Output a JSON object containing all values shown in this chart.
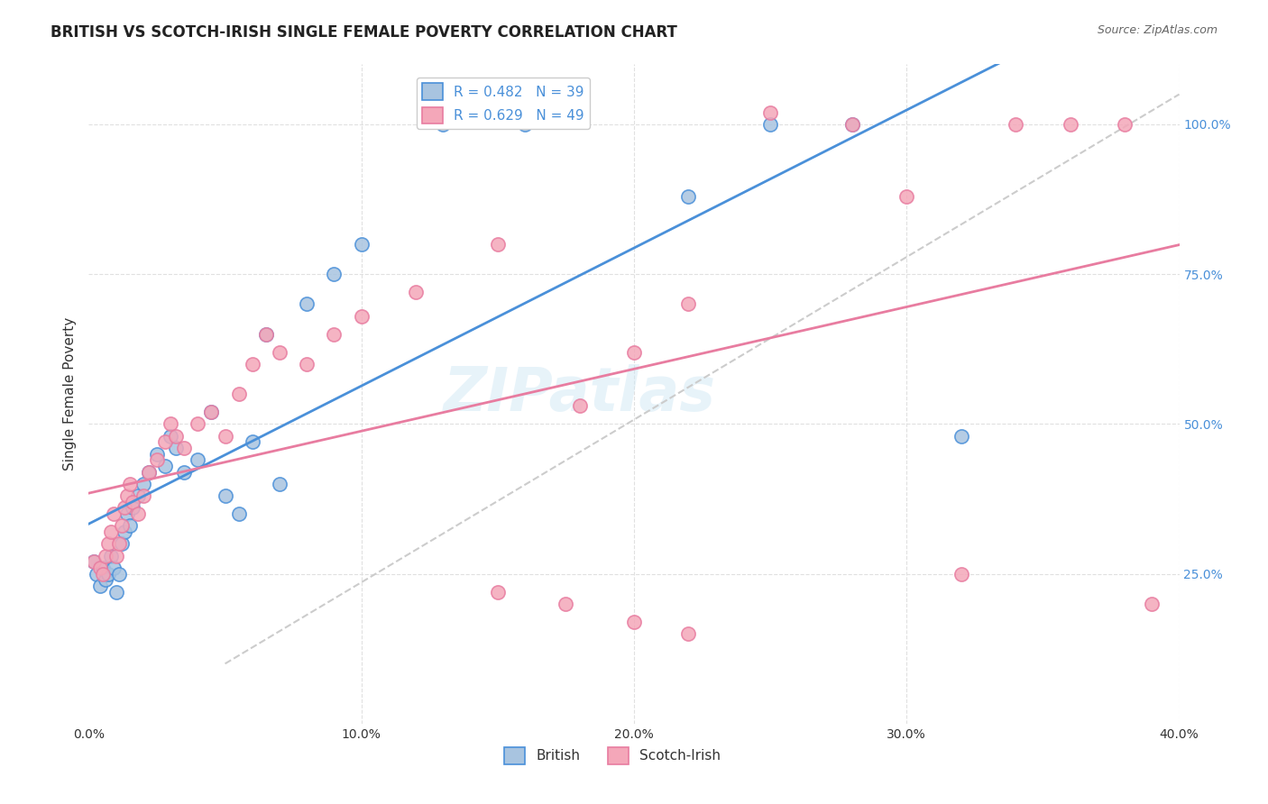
{
  "title": "BRITISH VS SCOTCH-IRISH SINGLE FEMALE POVERTY CORRELATION CHART",
  "source": "Source: ZipAtlas.com",
  "xlabel": "",
  "ylabel": "Single Female Poverty",
  "xlim": [
    0.0,
    0.4
  ],
  "ylim": [
    0.0,
    1.1
  ],
  "xticks": [
    0.0,
    0.1,
    0.2,
    0.3,
    0.4
  ],
  "xtick_labels": [
    "0.0%",
    "10.0%",
    "20.0%",
    "30.0%",
    "40.0%"
  ],
  "yticks_right": [
    0.25,
    0.5,
    0.75,
    1.0
  ],
  "ytick_labels_right": [
    "25.0%",
    "50.0%",
    "75.0%",
    "100.0%"
  ],
  "british_R": 0.482,
  "british_N": 39,
  "scotchirish_R": 0.629,
  "scotchirish_N": 49,
  "british_color": "#a8c4e0",
  "scotchirish_color": "#f4a7b9",
  "british_line_color": "#4a90d9",
  "scotchirish_line_color": "#e87ca0",
  "diagonal_color": "#cccccc",
  "background_color": "#ffffff",
  "grid_color": "#e0e0e0",
  "watermark": "ZIPatlas",
  "british_x": [
    0.002,
    0.003,
    0.004,
    0.005,
    0.006,
    0.007,
    0.008,
    0.009,
    0.01,
    0.011,
    0.012,
    0.013,
    0.014,
    0.015,
    0.016,
    0.018,
    0.02,
    0.022,
    0.025,
    0.028,
    0.03,
    0.032,
    0.035,
    0.04,
    0.045,
    0.05,
    0.055,
    0.06,
    0.065,
    0.07,
    0.08,
    0.09,
    0.1,
    0.13,
    0.16,
    0.22,
    0.25,
    0.28,
    0.32
  ],
  "british_y": [
    0.27,
    0.25,
    0.23,
    0.26,
    0.24,
    0.25,
    0.28,
    0.26,
    0.22,
    0.25,
    0.3,
    0.32,
    0.35,
    0.33,
    0.36,
    0.38,
    0.4,
    0.42,
    0.45,
    0.43,
    0.48,
    0.46,
    0.42,
    0.44,
    0.52,
    0.38,
    0.35,
    0.47,
    0.65,
    0.4,
    0.7,
    0.75,
    0.8,
    1.0,
    1.0,
    0.88,
    1.0,
    1.0,
    0.48
  ],
  "scotchirish_x": [
    0.002,
    0.004,
    0.005,
    0.006,
    0.007,
    0.008,
    0.009,
    0.01,
    0.011,
    0.012,
    0.013,
    0.014,
    0.015,
    0.016,
    0.018,
    0.02,
    0.022,
    0.025,
    0.028,
    0.03,
    0.032,
    0.035,
    0.04,
    0.045,
    0.05,
    0.055,
    0.06,
    0.065,
    0.07,
    0.08,
    0.09,
    0.1,
    0.12,
    0.15,
    0.18,
    0.2,
    0.22,
    0.25,
    0.28,
    0.3,
    0.32,
    0.34,
    0.36,
    0.38,
    0.39,
    0.15,
    0.175,
    0.2,
    0.22
  ],
  "scotchirish_y": [
    0.27,
    0.26,
    0.25,
    0.28,
    0.3,
    0.32,
    0.35,
    0.28,
    0.3,
    0.33,
    0.36,
    0.38,
    0.4,
    0.37,
    0.35,
    0.38,
    0.42,
    0.44,
    0.47,
    0.5,
    0.48,
    0.46,
    0.5,
    0.52,
    0.48,
    0.55,
    0.6,
    0.65,
    0.62,
    0.6,
    0.65,
    0.68,
    0.72,
    0.8,
    0.53,
    0.62,
    0.7,
    1.02,
    1.0,
    0.88,
    0.25,
    1.0,
    1.0,
    1.0,
    0.2,
    0.22,
    0.2,
    0.17,
    0.15
  ]
}
